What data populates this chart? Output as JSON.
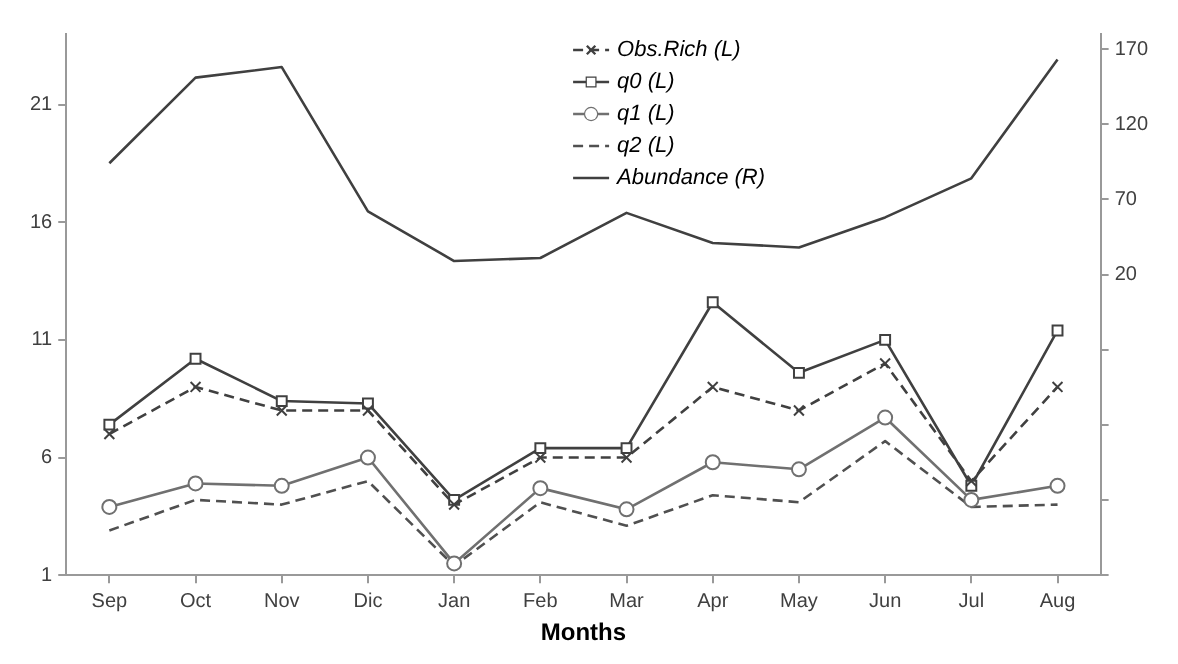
{
  "chart_data": {
    "type": "line",
    "xlabel": "Months",
    "categories": [
      "Sep",
      "Oct",
      "Nov",
      "Dic",
      "Jan",
      "Feb",
      "Mar",
      "Apr",
      "May",
      "Jun",
      "Jul",
      "Aug"
    ],
    "series": [
      {
        "name": "Obs.Rich (L)",
        "color": "#404040",
        "marker": "cross",
        "line_style": "dashed",
        "values": [
          7.0,
          9.0,
          8.0,
          8.0,
          4.0,
          6.0,
          6.0,
          9.0,
          8.0,
          10.0,
          5.0,
          9.0
        ]
      },
      {
        "name": "q0 (L)",
        "color": "#404040",
        "marker": "square",
        "line_style": "solid",
        "values": [
          7.4,
          10.2,
          8.4,
          8.3,
          4.2,
          6.4,
          6.4,
          12.6,
          9.6,
          11.0,
          4.8,
          11.4
        ]
      },
      {
        "name": "q1 (L)",
        "color": "#707070",
        "marker": "circle",
        "line_style": "solid",
        "values": [
          3.9,
          4.9,
          4.8,
          6.0,
          1.5,
          4.7,
          3.8,
          5.8,
          5.5,
          7.7,
          4.2,
          4.8
        ]
      },
      {
        "name": "q2 (L)",
        "color": "#505050",
        "marker": "none",
        "line_style": "dashed",
        "values": [
          2.9,
          4.2,
          4.0,
          5.0,
          1.4,
          4.1,
          3.1,
          4.4,
          4.1,
          6.7,
          3.9,
          4.0
        ]
      },
      {
        "name": "Abundance (R)",
        "color": "#404040",
        "marker": "none",
        "line_style": "solid",
        "axis": "y2",
        "values": [
          94,
          151,
          158,
          62,
          29,
          31,
          61,
          41,
          38,
          58,
          84,
          163
        ]
      }
    ],
    "ylim": [
      1,
      24
    ],
    "yticks": [
      1,
      6,
      11,
      16,
      21
    ],
    "y2lim": [
      -180,
      180
    ],
    "y2ticks": [
      {
        "value": -180,
        "label": null
      },
      {
        "value": -130,
        "label": null
      },
      {
        "value": -80,
        "label": null
      },
      {
        "value": -30,
        "label": null
      },
      20,
      70,
      120,
      170
    ],
    "grid": false,
    "legend": "top"
  }
}
